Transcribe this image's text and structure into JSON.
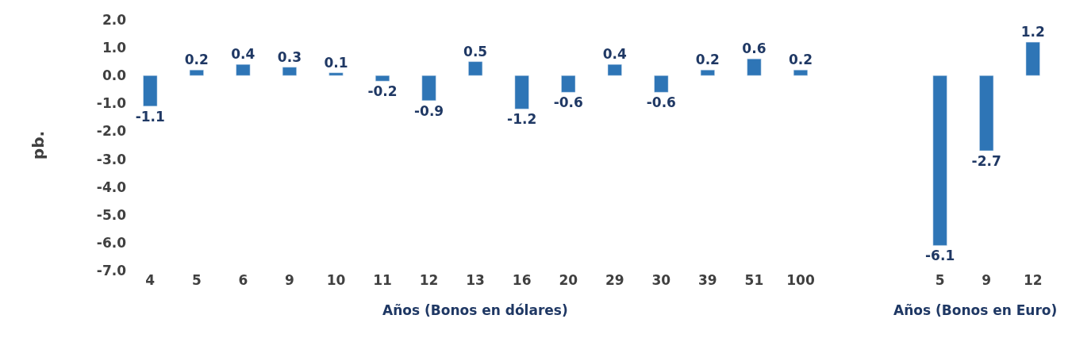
{
  "chart_data": {
    "type": "bar",
    "ylabel": "pb.",
    "categories": [
      "4",
      "5",
      "6",
      "9",
      "10",
      "11",
      "12",
      "13",
      "16",
      "20",
      "29",
      "30",
      "39",
      "51",
      "100",
      null,
      null,
      "5",
      "9",
      "12"
    ],
    "values": [
      -1.1,
      0.2,
      0.4,
      0.3,
      0.1,
      -0.2,
      -0.9,
      0.5,
      -1.2,
      -0.6,
      0.4,
      -0.6,
      0.2,
      0.6,
      0.2,
      null,
      null,
      -6.1,
      -2.7,
      1.2
    ],
    "color": "#2e75b6",
    "ylim": [
      -7.0,
      2.0
    ],
    "yticks": [
      {
        "value": 2,
        "label": "2.0"
      },
      {
        "value": 1,
        "label": "1.0"
      },
      {
        "value": 0,
        "label": "0.0"
      },
      {
        "value": -1,
        "label": "-1.0"
      },
      {
        "value": -2,
        "label": "-2.0"
      },
      {
        "value": -3,
        "label": "-3.0"
      },
      {
        "value": -4,
        "label": "-4.0"
      },
      {
        "value": -5,
        "label": "-5.0"
      },
      {
        "value": -6,
        "label": "-6.0"
      },
      {
        "value": -7,
        "label": "-7.0"
      }
    ],
    "data_labels": true,
    "annotations": [
      "Años (Bonos en dólares)",
      "Años (Bonos en Euro)"
    ],
    "legend": false
  }
}
